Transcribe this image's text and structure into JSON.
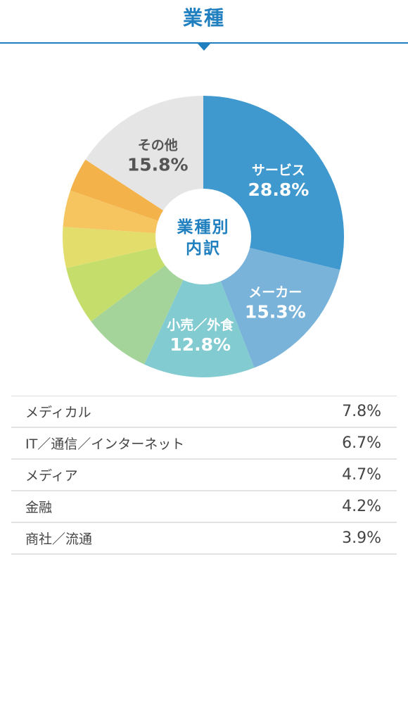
{
  "header": {
    "title": "業種",
    "accent_color": "#1f7fbf"
  },
  "chart_data": {
    "type": "pie",
    "style": "donut",
    "center_label_lines": [
      "業種別",
      "内訳"
    ],
    "start": "12 o'clock, clockwise",
    "slices": [
      {
        "name": "サービス",
        "value": 28.8,
        "value_label": "28.8%",
        "color": "#3f98ce",
        "labeled": true,
        "label_color": "#ffffff"
      },
      {
        "name": "メーカー",
        "value": 15.3,
        "value_label": "15.3%",
        "color": "#79b3d9",
        "labeled": true,
        "label_color": "#ffffff"
      },
      {
        "name": "小売／外食",
        "value": 12.8,
        "value_label": "12.8%",
        "color": "#82cbd0",
        "labeled": true,
        "label_color": "#ffffff"
      },
      {
        "name": "メディカル",
        "value": 7.8,
        "value_label": "7.8%",
        "color": "#a5d49b",
        "labeled": false
      },
      {
        "name": "IT／通信／インターネット",
        "value": 6.7,
        "value_label": "6.7%",
        "color": "#c5dd6a",
        "labeled": false
      },
      {
        "name": "メディア",
        "value": 4.7,
        "value_label": "4.7%",
        "color": "#e3dd6c",
        "labeled": false
      },
      {
        "name": "金融",
        "value": 4.2,
        "value_label": "4.2%",
        "color": "#f6c560",
        "labeled": false
      },
      {
        "name": "商社／流通",
        "value": 3.9,
        "value_label": "3.9%",
        "color": "#f3b24a",
        "labeled": false
      },
      {
        "name": "その他",
        "value": 15.8,
        "value_label": "15.8%",
        "color": "#e5e5e5",
        "labeled": true,
        "label_color": "#555555"
      }
    ]
  },
  "table": {
    "rows": [
      {
        "label": "メディカル",
        "value": "7.8%"
      },
      {
        "label": "IT／通信／インターネット",
        "value": "6.7%"
      },
      {
        "label": "メディア",
        "value": "4.7%"
      },
      {
        "label": "金融",
        "value": "4.2%"
      },
      {
        "label": "商社／流通",
        "value": "3.9%"
      }
    ]
  }
}
